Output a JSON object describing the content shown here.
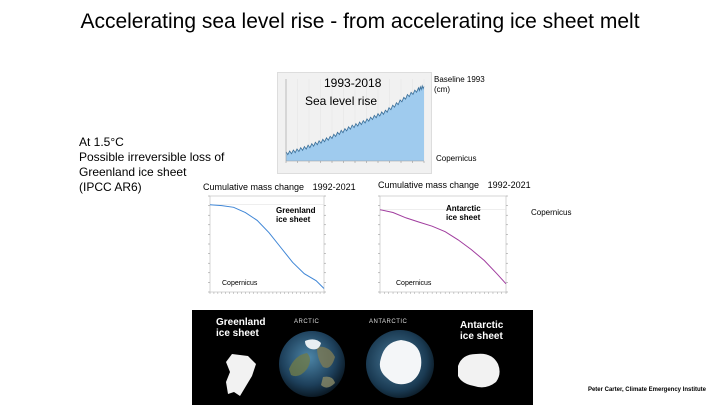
{
  "slide": {
    "title": "Accelerating sea level rise - from accelerating ice sheet melt",
    "ipcc_note": [
      "At 1.5°C",
      "Possible irreversible loss of",
      "Greenland ice sheet",
      "(IPCC AR6)"
    ],
    "credit": "Peter Carter, Climate Emergency Institute"
  },
  "sea_level": {
    "period": "1993-2018",
    "label": "Sea level rise",
    "baseline": [
      "Baseline 1993",
      "(cm)"
    ],
    "source": "Copernicus",
    "fill_color": "#9fcbee",
    "line_color": "#3a6f99",
    "chart_data": {
      "type": "area",
      "x": [
        1993,
        1995,
        1997,
        1999,
        2001,
        2003,
        2005,
        2007,
        2009,
        2011,
        2013,
        2015,
        2017,
        2018
      ],
      "values": [
        0,
        0.4,
        0.9,
        1.5,
        2.1,
        2.9,
        3.6,
        4.2,
        4.9,
        5.6,
        6.6,
        7.7,
        8.6,
        9.0
      ],
      "ylim": [
        -1,
        10
      ]
    }
  },
  "greenland_chart": {
    "title": "Cumulative mass change",
    "period": "1992-2021",
    "label": [
      "Greenland",
      "ice sheet"
    ],
    "source": "Copernicus",
    "line_color": "#3f86d6",
    "chart_data": {
      "type": "line",
      "x": [
        1992,
        1995,
        1998,
        2001,
        2004,
        2007,
        2010,
        2013,
        2016,
        2019,
        2021
      ],
      "values": [
        0,
        -50,
        -150,
        -450,
        -900,
        -1600,
        -2450,
        -3300,
        -3950,
        -4350,
        -4800
      ],
      "ylim": [
        -5000,
        500
      ]
    }
  },
  "antarctic_chart": {
    "title": "Cumulative mass change",
    "period": "1992-2021",
    "label": [
      "Antarctic",
      "ice sheet"
    ],
    "source": "Copernicus",
    "line_color": "#a03c9e",
    "chart_data": {
      "type": "line",
      "x": [
        1992,
        1995,
        1998,
        2001,
        2004,
        2007,
        2010,
        2013,
        2016,
        2019,
        2021
      ],
      "values": [
        0,
        -100,
        -300,
        -450,
        -600,
        -800,
        -1100,
        -1450,
        -1850,
        -2350,
        -2700
      ],
      "ylim": [
        -3000,
        500
      ]
    }
  },
  "ice_panel": {
    "greenland_label": [
      "Greenland",
      "ice sheet"
    ],
    "arctic_caption": "ARCTIC",
    "antarctic_caption": "ANTARCTIC",
    "antarctic_label": [
      "Antarctic",
      "ice sheet"
    ]
  }
}
